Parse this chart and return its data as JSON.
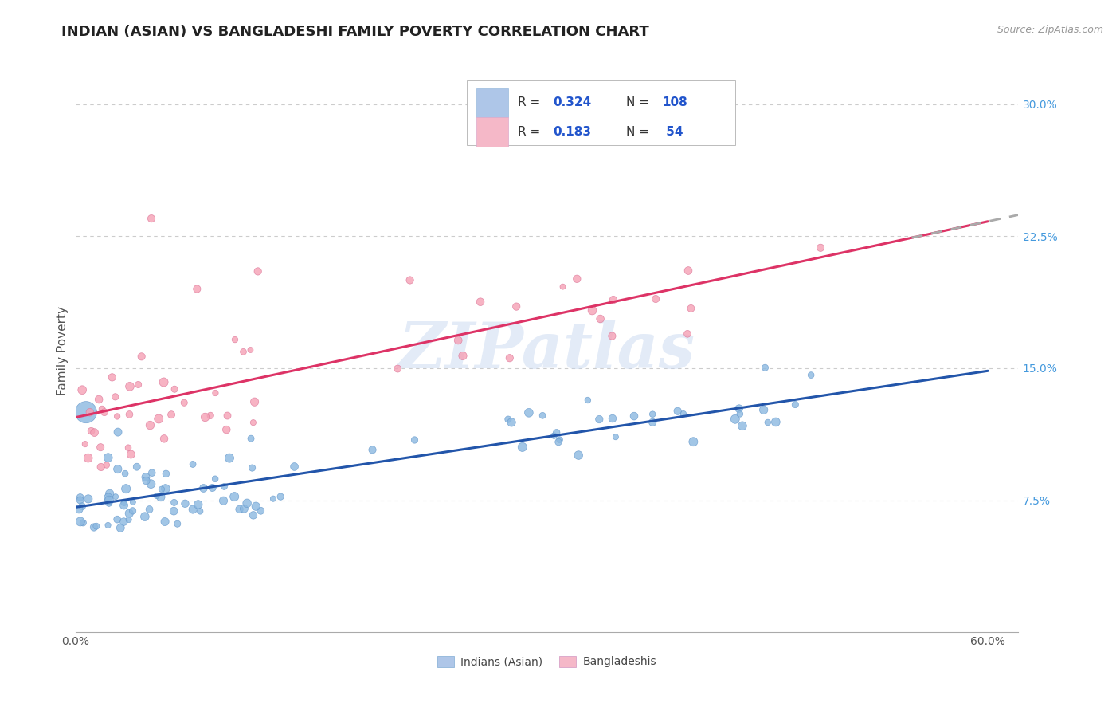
{
  "title": "INDIAN (ASIAN) VS BANGLADESHI FAMILY POVERTY CORRELATION CHART",
  "source": "Source: ZipAtlas.com",
  "ylabel": "Family Poverty",
  "xlim": [
    0.0,
    0.62
  ],
  "ylim": [
    0.0,
    0.32
  ],
  "xticks": [
    0.0,
    0.6
  ],
  "xticklabels": [
    "0.0%",
    "60.0%"
  ],
  "yticks_right": [
    0.075,
    0.15,
    0.225,
    0.3
  ],
  "yticklabels_right": [
    "7.5%",
    "15.0%",
    "22.5%",
    "30.0%"
  ],
  "blue_scatter_color": "#8BB8E0",
  "blue_scatter_edge": "#6699CC",
  "pink_scatter_color": "#F5A0B5",
  "pink_scatter_edge": "#DD7799",
  "trend_blue": "#2255AA",
  "trend_pink": "#DD3366",
  "watermark": "ZIPatlas",
  "title_fontsize": 13,
  "legend_r1": "0.324",
  "legend_n1": "108",
  "legend_r2": "0.183",
  "legend_n2": "54",
  "blue_label": "Indians (Asian)",
  "pink_label": "Bangladeshis",
  "grid_color": "#CCCCCC",
  "right_tick_color": "#4499DD"
}
